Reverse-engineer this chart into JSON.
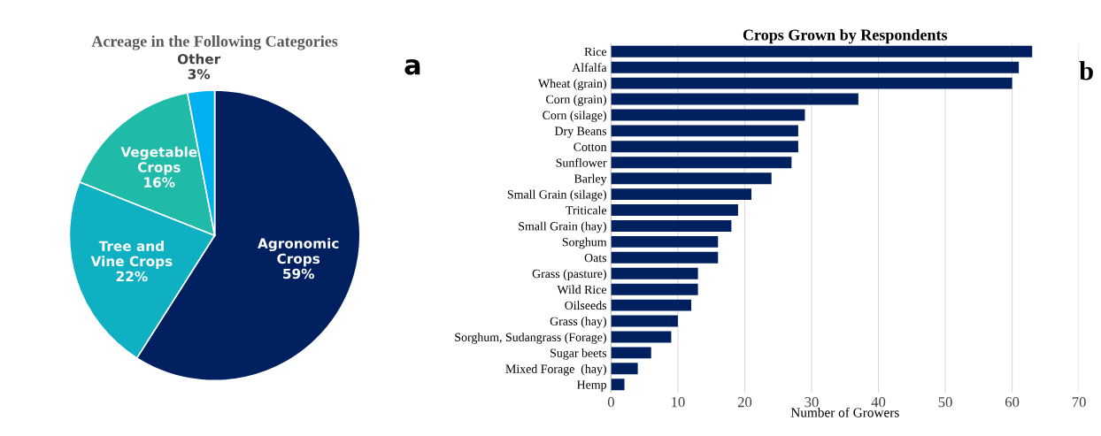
{
  "chart_data": [
    {
      "type": "pie",
      "title": "Acreage in the Following Categories",
      "categories": [
        "Agronomic\nCrops",
        "Tree and\nVine Crops",
        "Vegetable\nCrops",
        "Other"
      ],
      "values": [
        59,
        22,
        16,
        3
      ],
      "value_labels": [
        "59%",
        "22%",
        "16%",
        "3%"
      ],
      "colors": [
        "#002060",
        "#0eb0c2",
        "#1fbaa8",
        "#00b0f0"
      ],
      "annotations": [
        "a"
      ]
    },
    {
      "type": "bar",
      "orientation": "horizontal",
      "title": "Crops Grown by Respondents",
      "xlabel": "Number of Growers",
      "categories": [
        "Rice",
        "Alfalfa",
        "Wheat (grain)",
        "Corn (grain)",
        "Corn (silage)",
        "Dry Beans",
        "Cotton",
        "Sunflower",
        "Barley",
        "Small Grain (silage)",
        "Triticale",
        "Small Grain (hay)",
        "Sorghum",
        "Oats",
        "Grass (pasture)",
        "Wild Rice",
        "Oilseeds",
        "Grass (hay)",
        "Sorghum, Sudangrass (Forage)",
        "Sugar beets",
        "Mixed Forage  (hay)",
        "Hemp"
      ],
      "values": [
        63,
        61,
        60,
        37,
        29,
        28,
        28,
        27,
        24,
        21,
        19,
        18,
        16,
        16,
        13,
        13,
        12,
        10,
        9,
        6,
        4,
        2
      ],
      "color": "#002060",
      "xlim": [
        0,
        70
      ],
      "xticks": [
        0,
        10,
        20,
        30,
        40,
        50,
        60,
        70
      ],
      "grid": "x",
      "annotations": [
        "b"
      ]
    }
  ]
}
